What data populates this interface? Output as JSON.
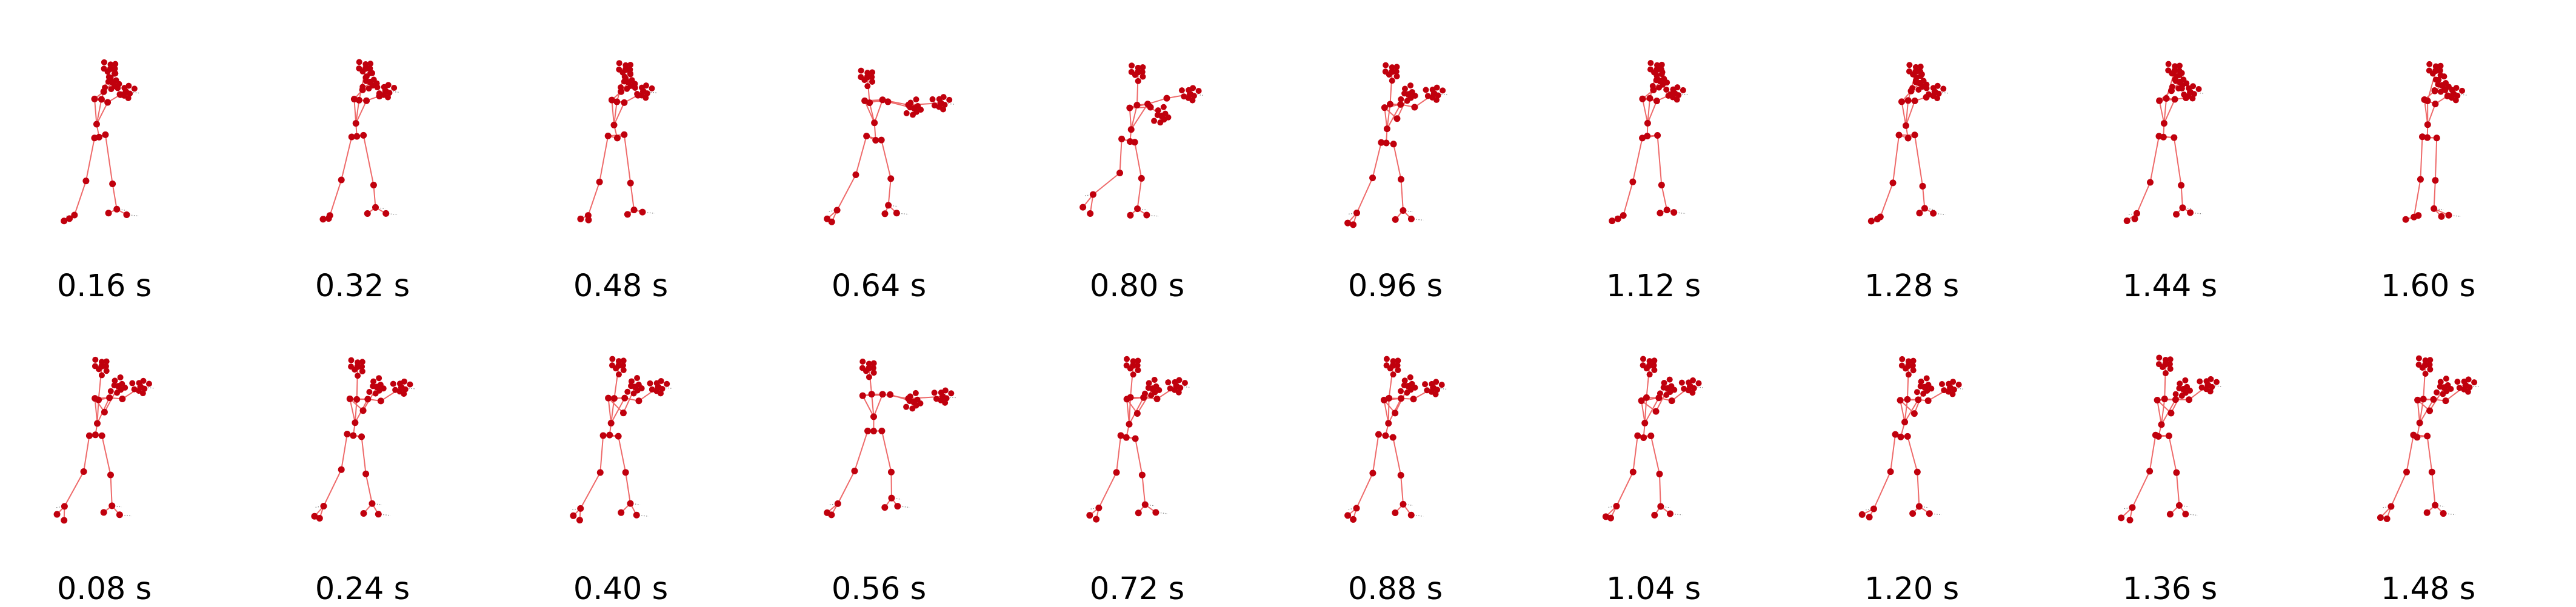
{
  "colors": {
    "joint": "#c0000d",
    "bone": "#ee6a6a",
    "trace": "#7a7a7a",
    "caption": "#000000"
  },
  "rows": [
    {
      "frames": [
        {
          "label": "0.16 s",
          "pose": "guard"
        },
        {
          "label": "0.32 s",
          "pose": "guard"
        },
        {
          "label": "0.48 s",
          "pose": "guard"
        },
        {
          "label": "0.64 s",
          "pose": "punch"
        },
        {
          "label": "0.80 s",
          "pose": "punch-low"
        },
        {
          "label": "0.96 s",
          "pose": "half-punch"
        },
        {
          "label": "1.12 s",
          "pose": "guard"
        },
        {
          "label": "1.28 s",
          "pose": "guard"
        },
        {
          "label": "1.44 s",
          "pose": "guard"
        },
        {
          "label": "1.60 s",
          "pose": "guard-upright"
        }
      ]
    },
    {
      "frames": [
        {
          "label": "0.08 s",
          "pose": "half-punch"
        },
        {
          "label": "0.24 s",
          "pose": "half-punch"
        },
        {
          "label": "0.40 s",
          "pose": "half-punch"
        },
        {
          "label": "0.56 s",
          "pose": "punch"
        },
        {
          "label": "0.72 s",
          "pose": "half-punch"
        },
        {
          "label": "0.88 s",
          "pose": "half-punch"
        },
        {
          "label": "1.04 s",
          "pose": "half-punch"
        },
        {
          "label": "1.20 s",
          "pose": "half-punch"
        },
        {
          "label": "1.36 s",
          "pose": "half-punch"
        },
        {
          "label": "1.48 s",
          "pose": "half-punch"
        }
      ]
    }
  ]
}
